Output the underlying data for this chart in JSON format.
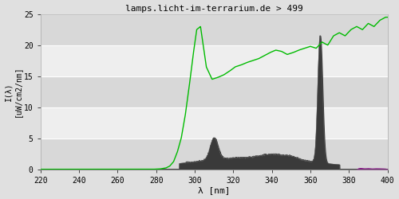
{
  "title": "lamps.licht-im-terrarium.de > 499",
  "xlabel": "λ [nm]",
  "ylabel": "I(λ)\n[uW/cm2/nm]",
  "xlim": [
    220,
    400
  ],
  "ylim": [
    0,
    25
  ],
  "yticks": [
    0,
    5,
    10,
    15,
    20,
    25
  ],
  "xticks": [
    220,
    240,
    260,
    280,
    300,
    320,
    340,
    360,
    380,
    400
  ],
  "bg_color": "#e0e0e0",
  "plot_bg_color": "#e8e8e8",
  "band_color_dark": "#d8d8d8",
  "band_color_light": "#eeeeee",
  "grid_color": "#ffffff",
  "green_line_color": "#00bb00",
  "spectrum_fill_color": "#3a3a3a",
  "spectrum_edge_color": "#555555",
  "purple_fill_color": "#880088",
  "title_fontsize": 8,
  "tick_fontsize": 7,
  "ylabel_fontsize": 7,
  "xlabel_fontsize": 8,
  "green_pts_x": [
    220,
    278,
    282,
    285,
    287,
    289,
    291,
    293,
    295,
    297,
    299,
    301,
    303,
    306,
    309,
    312,
    315,
    318,
    321,
    324,
    327,
    330,
    333,
    336,
    339,
    342,
    345,
    348,
    351,
    354,
    357,
    360,
    363,
    366,
    369,
    372,
    375,
    378,
    381,
    384,
    387,
    390,
    393,
    396,
    399,
    400
  ],
  "green_pts_y": [
    0,
    0,
    0.05,
    0.2,
    0.5,
    1.2,
    2.8,
    5.0,
    8.5,
    13.0,
    18.0,
    22.5,
    23.0,
    16.5,
    14.5,
    14.8,
    15.2,
    15.8,
    16.5,
    16.8,
    17.2,
    17.5,
    17.8,
    18.3,
    18.8,
    19.2,
    19.0,
    18.5,
    18.8,
    19.2,
    19.5,
    19.8,
    19.5,
    20.5,
    20.0,
    21.5,
    22.0,
    21.5,
    22.5,
    23.0,
    22.5,
    23.5,
    23.0,
    24.0,
    24.5,
    24.5
  ]
}
